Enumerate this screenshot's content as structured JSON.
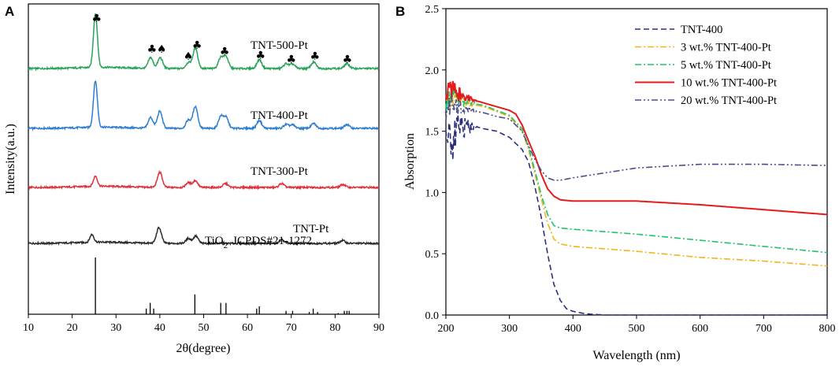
{
  "chart_data": [
    {
      "panel": "A",
      "type": "line",
      "xlabel": "2θ(degree)",
      "ylabel": "Intensity(a.u.)",
      "xlim": [
        10,
        90
      ],
      "xticks": [
        10,
        20,
        30,
        40,
        50,
        60,
        70,
        80,
        90
      ],
      "series": [
        {
          "name": "TNT-500-Pt",
          "color": "#2aa35a",
          "peaks": [
            [
              25.3,
              11
            ],
            [
              37.9,
              2.2
            ],
            [
              40.1,
              2.2
            ],
            [
              46.5,
              1.2
            ],
            [
              48.1,
              4.2
            ],
            [
              53.9,
              2.2
            ],
            [
              55.1,
              2.4
            ],
            [
              62.7,
              1.8
            ],
            [
              68.8,
              1.0
            ],
            [
              70.3,
              0.9
            ],
            [
              75.1,
              1.3
            ],
            [
              82.7,
              1.0
            ]
          ]
        },
        {
          "name": "TNT-400-Pt",
          "color": "#2e7dd1",
          "peaks": [
            [
              25.3,
              9.5
            ],
            [
              37.9,
              2.2
            ],
            [
              40.0,
              3.5
            ],
            [
              46.5,
              1.7
            ],
            [
              48.1,
              4.5
            ],
            [
              53.9,
              2.4
            ],
            [
              55.1,
              2.2
            ],
            [
              62.7,
              1.6
            ],
            [
              68.8,
              0.8
            ],
            [
              70.3,
              0.7
            ],
            [
              75.1,
              1.0
            ],
            [
              82.7,
              0.8
            ]
          ]
        },
        {
          "name": "TNT-300-Pt",
          "color": "#e0313b",
          "peaks": [
            [
              25.3,
              2.1
            ],
            [
              40.0,
              3.1
            ],
            [
              46.5,
              1.0
            ],
            [
              48.1,
              1.4
            ],
            [
              55.0,
              0.8
            ],
            [
              67.8,
              0.8
            ],
            [
              81.8,
              0.6
            ]
          ]
        },
        {
          "name": "TNT-Pt",
          "color": "#2b2b2b",
          "peaks": [
            [
              24.5,
              1.6
            ],
            [
              39.8,
              3.2
            ],
            [
              46.5,
              1.0
            ],
            [
              48.2,
              1.5
            ],
            [
              67.8,
              0.7
            ],
            [
              81.7,
              0.6
            ]
          ]
        }
      ],
      "reference": {
        "label": "TiO",
        "label_sub": "2",
        "label_code": "JCPDS#21-1272",
        "lines": [
          [
            25.3,
            100
          ],
          [
            36.9,
            10
          ],
          [
            37.8,
            20
          ],
          [
            38.6,
            10
          ],
          [
            48.0,
            35
          ],
          [
            53.9,
            20
          ],
          [
            55.1,
            20
          ],
          [
            62.1,
            10
          ],
          [
            62.7,
            14
          ],
          [
            68.8,
            6
          ],
          [
            70.3,
            6
          ],
          [
            74.1,
            4
          ],
          [
            75.0,
            10
          ],
          [
            76.0,
            4
          ],
          [
            80.7,
            2
          ],
          [
            82.1,
            6
          ],
          [
            82.7,
            6
          ],
          [
            83.2,
            6
          ]
        ]
      },
      "markers": [
        {
          "symbol": "♣",
          "x": 25.6
        },
        {
          "symbol": "♣",
          "x": 38.2
        },
        {
          "symbol": "♠",
          "x": 40.4
        },
        {
          "symbol": "♠",
          "x": 46.5
        },
        {
          "symbol": "♣",
          "x": 48.5
        },
        {
          "symbol": "♣",
          "x": 54.8
        },
        {
          "symbol": "♣",
          "x": 63.0
        },
        {
          "symbol": "♣",
          "x": 70.0
        },
        {
          "symbol": "♣",
          "x": 75.4
        },
        {
          "symbol": "♣",
          "x": 82.8
        }
      ]
    },
    {
      "panel": "B",
      "type": "line",
      "xlabel": "Wavelength (nm)",
      "ylabel": "Absorption",
      "xlim": [
        200,
        800
      ],
      "ylim": [
        0.0,
        2.5
      ],
      "xticks": [
        200,
        300,
        400,
        500,
        600,
        700,
        800
      ],
      "yticks": [
        0.0,
        0.5,
        1.0,
        1.5,
        2.0,
        2.5
      ],
      "legend": "top-right",
      "series": [
        {
          "name": "TNT-400",
          "color": "#2b2f7a",
          "dash": "dashed",
          "x": [
            200,
            212,
            218,
            230,
            245,
            260,
            280,
            300,
            320,
            330,
            340,
            350,
            360,
            370,
            380,
            390,
            400,
            420,
            450,
            500,
            800
          ],
          "y": [
            1.48,
            1.38,
            1.56,
            1.52,
            1.54,
            1.52,
            1.5,
            1.45,
            1.35,
            1.25,
            1.05,
            0.8,
            0.5,
            0.25,
            0.12,
            0.05,
            0.03,
            0.01,
            0.0,
            0.0,
            0.0
          ]
        },
        {
          "name": "3 wt.% TNT-400-Pt",
          "color": "#f2b41b",
          "dash": "dashdot",
          "x": [
            200,
            210,
            220,
            240,
            260,
            280,
            300,
            320,
            330,
            340,
            350,
            360,
            370,
            380,
            400,
            500,
            600,
            700,
            800
          ],
          "y": [
            1.7,
            1.78,
            1.75,
            1.72,
            1.7,
            1.66,
            1.62,
            1.5,
            1.35,
            1.15,
            0.95,
            0.75,
            0.62,
            0.58,
            0.56,
            0.52,
            0.47,
            0.44,
            0.4
          ]
        },
        {
          "name": "5 wt.% TNT-400-Pt",
          "color": "#1fc36a",
          "dash": "dashdot",
          "x": [
            200,
            210,
            220,
            240,
            260,
            280,
            300,
            320,
            330,
            340,
            350,
            360,
            370,
            380,
            400,
            500,
            600,
            700,
            800
          ],
          "y": [
            1.72,
            1.8,
            1.76,
            1.73,
            1.71,
            1.67,
            1.63,
            1.52,
            1.37,
            1.18,
            0.98,
            0.82,
            0.73,
            0.71,
            0.7,
            0.66,
            0.61,
            0.56,
            0.51
          ]
        },
        {
          "name": "10 wt.% TNT-400-Pt",
          "color": "#e51b1b",
          "dash": "solid",
          "x": [
            200,
            210,
            220,
            240,
            260,
            280,
            300,
            310,
            320,
            330,
            340,
            350,
            360,
            370,
            380,
            400,
            500,
            600,
            700,
            800
          ],
          "y": [
            1.8,
            1.85,
            1.8,
            1.76,
            1.73,
            1.7,
            1.67,
            1.64,
            1.55,
            1.42,
            1.3,
            1.15,
            1.03,
            0.97,
            0.94,
            0.93,
            0.93,
            0.9,
            0.86,
            0.82
          ]
        },
        {
          "name": "20 wt.% TNT-400-Pt",
          "color": "#4a4d8c",
          "dash": "dashdotdot",
          "x": [
            200,
            210,
            220,
            240,
            260,
            280,
            300,
            320,
            330,
            340,
            350,
            360,
            370,
            380,
            400,
            450,
            500,
            600,
            700,
            800
          ],
          "y": [
            1.65,
            1.72,
            1.7,
            1.67,
            1.65,
            1.62,
            1.6,
            1.5,
            1.38,
            1.27,
            1.18,
            1.12,
            1.1,
            1.1,
            1.12,
            1.16,
            1.2,
            1.23,
            1.23,
            1.22
          ]
        }
      ]
    }
  ]
}
